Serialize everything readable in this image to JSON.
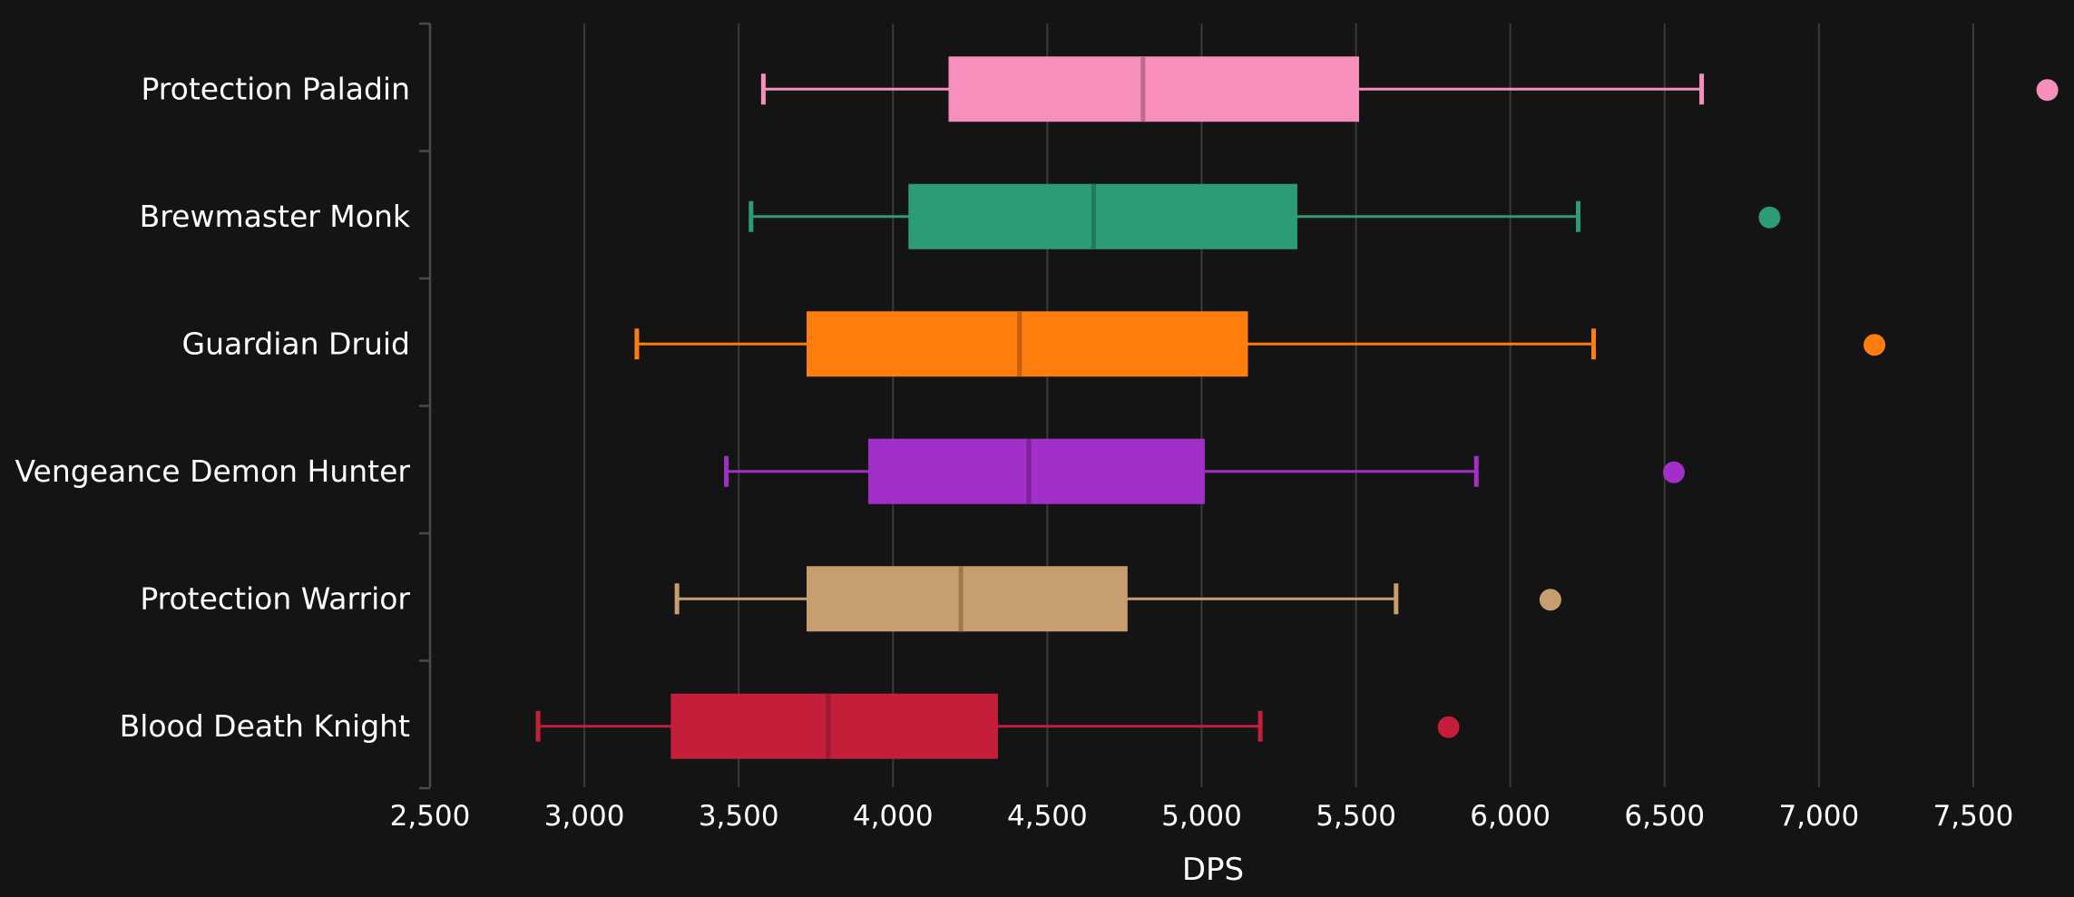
{
  "chart_data": {
    "type": "box",
    "xlabel": "DPS",
    "xlim": [
      2500,
      7750
    ],
    "xticks": [
      2500,
      3000,
      3500,
      4000,
      4500,
      5000,
      5500,
      6000,
      6500,
      7000,
      7500
    ],
    "xtick_labels": [
      "2,500",
      "3,000",
      "3,500",
      "4,000",
      "4,500",
      "5,000",
      "5,500",
      "6,000",
      "6,500",
      "7,000",
      "7,500"
    ],
    "grid": "vertical",
    "series": [
      {
        "category": "Protection Paladin",
        "min": 3580,
        "q1": 4180,
        "median": 4810,
        "q3": 5510,
        "max": 6620,
        "outliers": [
          7740
        ],
        "color": "#f78fbd",
        "median_color": "#c06a8f"
      },
      {
        "category": "Brewmaster Monk",
        "min": 3540,
        "q1": 4050,
        "median": 4650,
        "q3": 5310,
        "max": 6220,
        "outliers": [
          6840
        ],
        "color": "#2c9c78",
        "median_color": "#1f7a5c"
      },
      {
        "category": "Guardian Druid",
        "min": 3170,
        "q1": 3720,
        "median": 4410,
        "q3": 5150,
        "max": 6270,
        "outliers": [
          7180
        ],
        "color": "#fe7d0d",
        "median_color": "#c46006"
      },
      {
        "category": "Vengeance Demon Hunter",
        "min": 3460,
        "q1": 3920,
        "median": 4440,
        "q3": 5010,
        "max": 5890,
        "outliers": [
          6530
        ],
        "color": "#a22fc8",
        "median_color": "#7d2299"
      },
      {
        "category": "Protection Warrior",
        "min": 3300,
        "q1": 3720,
        "median": 4220,
        "q3": 4760,
        "max": 5630,
        "outliers": [
          6130
        ],
        "color": "#c79e6f",
        "median_color": "#a07850"
      },
      {
        "category": "Blood Death Knight",
        "min": 2850,
        "q1": 3280,
        "median": 3790,
        "q3": 4340,
        "max": 5190,
        "outliers": [
          5800
        ],
        "color": "#c41e3a",
        "median_color": "#9a1830"
      }
    ]
  }
}
